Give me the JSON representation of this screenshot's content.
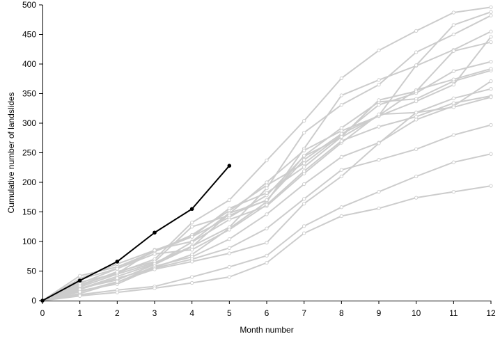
{
  "chart_data": {
    "type": "line",
    "xlabel": "Month number",
    "ylabel": "Cumulative number of landslides",
    "xlim": [
      0,
      12
    ],
    "ylim": [
      0,
      500
    ],
    "x_ticks": [
      0,
      1,
      2,
      3,
      4,
      5,
      6,
      7,
      8,
      9,
      10,
      11,
      12
    ],
    "y_ticks": [
      0,
      50,
      100,
      150,
      200,
      250,
      300,
      350,
      400,
      450,
      500
    ],
    "grid": false,
    "colors": {
      "background_series": "#cccccc",
      "highlight_series": "#000000"
    },
    "series": [
      {
        "x": [
          0,
          1,
          2,
          3,
          4,
          5,
          6,
          7,
          8,
          9,
          10,
          11,
          12
        ],
        "values": [
          0,
          27,
          47,
          70,
          132,
          170,
          237,
          304,
          376,
          423,
          456,
          487,
          496
        ],
        "color": "#cccccc",
        "marker": "open-circle"
      },
      {
        "x": [
          0,
          1,
          2,
          3,
          4,
          5,
          6,
          7,
          8,
          9,
          10,
          11,
          12
        ],
        "values": [
          0,
          17,
          28,
          56,
          78,
          122,
          167,
          257,
          347,
          373,
          397,
          424,
          455
        ],
        "color": "#cccccc",
        "marker": "open-circle"
      },
      {
        "x": [
          0,
          1,
          2,
          3,
          4,
          5,
          6,
          7,
          8,
          9,
          10,
          11,
          12
        ],
        "values": [
          0,
          42,
          57,
          83,
          108,
          141,
          178,
          244,
          276,
          313,
          398,
          466,
          488
        ],
        "color": "#cccccc",
        "marker": "open-circle"
      },
      {
        "x": [
          0,
          1,
          2,
          3,
          4,
          5,
          6,
          7,
          8,
          9,
          10,
          11,
          12
        ],
        "values": [
          0,
          23,
          45,
          64,
          92,
          124,
          190,
          284,
          331,
          365,
          420,
          450,
          482
        ],
        "color": "#cccccc",
        "marker": "open-circle"
      },
      {
        "x": [
          0,
          1,
          2,
          3,
          4,
          5,
          6,
          7,
          8,
          9,
          10,
          11,
          12
        ],
        "values": [
          0,
          36,
          54,
          83,
          111,
          152,
          195,
          232,
          280,
          331,
          351,
          388,
          404
        ],
        "color": "#cccccc",
        "marker": "open-circle"
      },
      {
        "x": [
          0,
          1,
          2,
          3,
          4,
          5,
          6,
          7,
          8,
          9,
          10,
          11,
          12
        ],
        "values": [
          0,
          31,
          46,
          86,
          100,
          148,
          169,
          245,
          292,
          336,
          341,
          371,
          389
        ],
        "color": "#cccccc",
        "marker": "open-circle"
      },
      {
        "x": [
          0,
          1,
          2,
          3,
          4,
          5,
          6,
          7,
          8,
          9,
          10,
          11,
          12
        ],
        "values": [
          0,
          21,
          35,
          61,
          91,
          147,
          200,
          254,
          287,
          312,
          337,
          365,
          446
        ],
        "color": "#cccccc",
        "marker": "open-circle"
      },
      {
        "x": [
          0,
          1,
          2,
          3,
          4,
          5,
          6,
          7,
          8,
          9,
          10,
          11,
          12
        ],
        "values": [
          0,
          25,
          49,
          66,
          125,
          144,
          170,
          238,
          282,
          313,
          356,
          374,
          392
        ],
        "color": "#cccccc",
        "marker": "open-circle"
      },
      {
        "x": [
          0,
          1,
          2,
          3,
          4,
          5,
          6,
          7,
          8,
          9,
          10,
          11,
          12
        ],
        "values": [
          0,
          37,
          62,
          85,
          108,
          156,
          182,
          226,
          277,
          339,
          354,
          422,
          437
        ],
        "color": "#cccccc",
        "marker": "open-circle"
      },
      {
        "x": [
          0,
          1,
          2,
          3,
          4,
          5,
          6,
          7,
          8,
          9,
          10,
          11,
          12
        ],
        "values": [
          0,
          20,
          41,
          62,
          99,
          137,
          160,
          215,
          267,
          315,
          318,
          342,
          358
        ],
        "color": "#cccccc",
        "marker": "open-circle"
      },
      {
        "x": [
          0,
          1,
          2,
          3,
          4,
          5,
          6,
          7,
          8,
          9,
          10,
          11,
          12
        ],
        "values": [
          0,
          29,
          54,
          79,
          86,
          120,
          162,
          219,
          270,
          294,
          311,
          334,
          346
        ],
        "color": "#cccccc",
        "marker": "open-circle"
      },
      {
        "x": [
          0,
          1,
          2,
          3,
          4,
          5,
          6,
          7,
          8,
          9,
          10,
          11,
          12
        ],
        "values": [
          0,
          12,
          31,
          58,
          74,
          104,
          146,
          197,
          243,
          267,
          306,
          329,
          371
        ],
        "color": "#cccccc",
        "marker": "open-circle"
      },
      {
        "x": [
          0,
          1,
          2,
          3,
          4,
          5,
          6,
          7,
          8,
          9,
          10,
          11,
          12
        ],
        "values": [
          0,
          19,
          38,
          55,
          70,
          89,
          122,
          172,
          221,
          238,
          256,
          280,
          297
        ],
        "color": "#cccccc",
        "marker": "open-circle"
      },
      {
        "x": [
          0,
          1,
          2,
          3,
          4,
          5,
          6,
          7,
          8,
          9,
          10,
          11,
          12
        ],
        "values": [
          0,
          15,
          32,
          53,
          66,
          80,
          98,
          164,
          210,
          266,
          318,
          327,
          344
        ],
        "color": "#cccccc",
        "marker": "open-circle"
      },
      {
        "x": [
          0,
          1,
          2,
          3,
          4,
          5,
          6,
          7,
          8,
          9,
          10,
          11,
          12
        ],
        "values": [
          0,
          10,
          18,
          24,
          40,
          57,
          76,
          126,
          158,
          184,
          210,
          234,
          248
        ],
        "color": "#cccccc",
        "marker": "open-circle"
      },
      {
        "x": [
          0,
          1,
          2,
          3,
          4,
          5,
          6,
          7,
          8,
          9,
          10,
          11,
          12
        ],
        "values": [
          0,
          8,
          14,
          21,
          30,
          40,
          64,
          114,
          143,
          156,
          174,
          184,
          194
        ],
        "color": "#cccccc",
        "marker": "open-circle"
      },
      {
        "x": [
          0,
          1,
          2,
          3,
          4,
          5
        ],
        "values": [
          0,
          34,
          66,
          115,
          155,
          228
        ],
        "color": "#000000",
        "marker": "filled-circle"
      }
    ]
  }
}
